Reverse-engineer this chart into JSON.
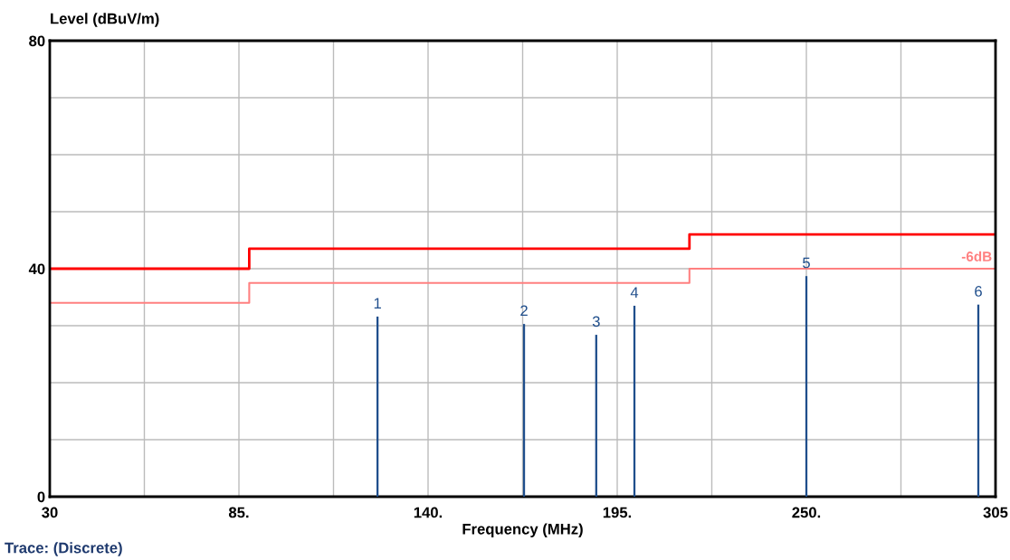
{
  "chart_data": {
    "type": "bar",
    "xlabel": "Frequency (MHz)",
    "ylabel": "Level (dBuV/m)",
    "xlim": [
      30,
      305
    ],
    "ylim": [
      0,
      80
    ],
    "xticks": [
      30,
      {
        "value": 57.5,
        "label": null
      },
      {
        "value": 85,
        "label": "85."
      },
      {
        "value": 112.5,
        "label": null
      },
      {
        "value": 140,
        "label": "140."
      },
      {
        "value": 167.5,
        "label": null
      },
      {
        "value": 195,
        "label": "195."
      },
      {
        "value": 222.5,
        "label": null
      },
      {
        "value": 250,
        "label": "250."
      },
      {
        "value": 277.5,
        "label": null
      },
      305
    ],
    "yticks": [
      0,
      {
        "value": 10,
        "label": null
      },
      {
        "value": 20,
        "label": null
      },
      {
        "value": 30,
        "label": null
      },
      40,
      {
        "value": 50,
        "label": null
      },
      {
        "value": 60,
        "label": null
      },
      {
        "value": 70,
        "label": null
      },
      80
    ],
    "grid": true,
    "series": [
      {
        "type": "step",
        "color": "#ff0000",
        "x": [
          30,
          88,
          216,
          305
        ],
        "values": [
          40,
          43.5,
          46,
          46
        ]
      },
      {
        "type": "step",
        "name": "-6dB",
        "color": "#ff8080",
        "x": [
          30,
          88,
          216,
          305
        ],
        "values": [
          34,
          37.5,
          40,
          40
        ]
      },
      {
        "color": "#1f4e8c",
        "x": [
          125.3,
          167.9,
          188.9,
          200,
          250,
          300
        ],
        "values": [
          31.6,
          30.3,
          28.4,
          33.5,
          38.7,
          33.7
        ]
      }
    ],
    "annotations": [
      {
        "text": "1",
        "x": 125.3,
        "y": 31.6
      },
      {
        "text": "2",
        "x": 167.9,
        "y": 30.3
      },
      {
        "text": "3",
        "x": 188.9,
        "y": 28.4
      },
      {
        "text": "4",
        "x": 200,
        "y": 33.5
      },
      {
        "text": "5",
        "x": 250,
        "y": 38.7
      },
      {
        "text": "6",
        "x": 300,
        "y": 33.7
      },
      "Trace: (Discrete)"
    ]
  }
}
